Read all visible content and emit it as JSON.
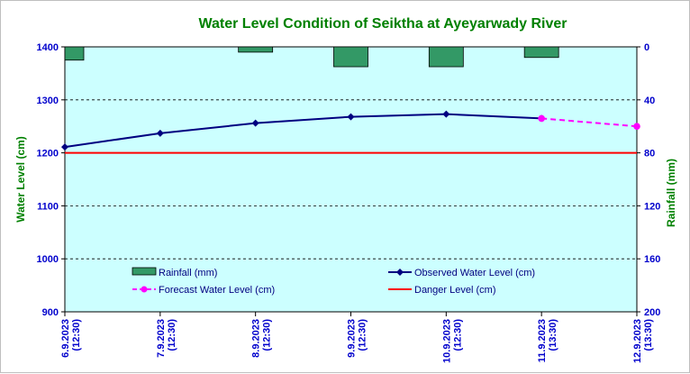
{
  "chart_data": {
    "type": "line",
    "title": "Water Level Condition  of Seiktha at Ayeyarwady  River",
    "ylabel": "Water Level (cm)",
    "y2label": "Rainfall (mm)",
    "ylim": [
      900,
      1400
    ],
    "yticks": [
      900,
      1000,
      1100,
      1200,
      1300,
      1400
    ],
    "y2lim": [
      0,
      200
    ],
    "y2reversed": true,
    "y2ticks": [
      0,
      40,
      80,
      120,
      160,
      200
    ],
    "grid": "horizontal dashed",
    "plot_background": "#ccffff",
    "legend_position": "inside-bottom",
    "categories": [
      [
        "6.9.2023",
        "(12:30)"
      ],
      [
        "7.9.2023",
        "(12:30)"
      ],
      [
        "8.9.2023",
        "(12:30)"
      ],
      [
        "9.9.2023",
        "(12:30)"
      ],
      [
        "10.9.2023",
        "(12:30)"
      ],
      [
        "11.9.2023",
        "(13:30)"
      ],
      [
        "12.9.2023",
        "(13:30)"
      ]
    ],
    "series": [
      {
        "name": "Rainfall (mm)",
        "kind": "bar",
        "axis": "right",
        "color": "#339966",
        "values": [
          10,
          null,
          4,
          15,
          15,
          8,
          null
        ]
      },
      {
        "name": "Observed Water Level (cm)",
        "kind": "line",
        "axis": "left",
        "color": "#000080",
        "marker": "diamond",
        "values": [
          1211,
          1237,
          1256,
          1268,
          1273,
          1265,
          null
        ]
      },
      {
        "name": "Forecast Water Level (cm)",
        "kind": "line",
        "axis": "left",
        "color": "#ff00ff",
        "dash": true,
        "marker": "circle",
        "values": [
          null,
          null,
          null,
          null,
          null,
          1265,
          1250
        ]
      },
      {
        "name": "Danger Level (cm)",
        "kind": "hline",
        "axis": "left",
        "color": "#ff0000",
        "values": [
          1200,
          1200,
          1200,
          1200,
          1200,
          1200,
          1200
        ]
      }
    ]
  }
}
